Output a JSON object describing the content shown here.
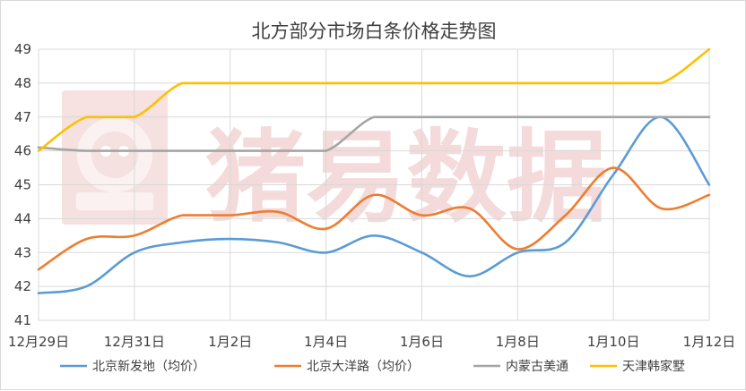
{
  "chart_data": {
    "type": "line",
    "title": "北方部分市场白条价格走势图",
    "xlabel": "",
    "ylabel": "",
    "x_tick_labels": [
      "12月29日",
      "12月31日",
      "1月2日",
      "1月4日",
      "1月6日",
      "1月8日",
      "1月10日",
      "1月12日"
    ],
    "x": [
      "12-29",
      "12-30",
      "12-31",
      "1-1",
      "1-2",
      "1-3",
      "1-4",
      "1-5",
      "1-6",
      "1-7",
      "1-8",
      "1-9",
      "1-10",
      "1-11",
      "1-12"
    ],
    "ylim": [
      41,
      49
    ],
    "y_ticks": [
      41,
      42,
      43,
      44,
      45,
      46,
      47,
      48,
      49
    ],
    "grid": true,
    "legend_position": "bottom",
    "series": [
      {
        "name": "北京新发地（均价）",
        "color": "#5b9bd5",
        "values": [
          41.8,
          42.0,
          43.0,
          43.3,
          43.4,
          43.3,
          43.0,
          43.5,
          43.0,
          42.3,
          43.0,
          43.3,
          45.3,
          47.0,
          45.0
        ]
      },
      {
        "name": "北京大洋路（均价）",
        "color": "#ed7d31",
        "values": [
          42.5,
          43.4,
          43.5,
          44.1,
          44.1,
          44.2,
          43.7,
          44.7,
          44.1,
          44.3,
          43.1,
          44.1,
          45.5,
          44.3,
          44.7
        ]
      },
      {
        "name": "内蒙古美通",
        "color": "#a5a5a5",
        "values": [
          46.1,
          46.0,
          46.0,
          46.0,
          46.0,
          46.0,
          46.0,
          47.0,
          47.0,
          47.0,
          47.0,
          47.0,
          47.0,
          47.0,
          47.0
        ]
      },
      {
        "name": "天津韩家墅",
        "color": "#ffc000",
        "values": [
          46.0,
          47.0,
          47.0,
          48.0,
          48.0,
          48.0,
          48.0,
          48.0,
          48.0,
          48.0,
          48.0,
          48.0,
          48.0,
          48.0,
          49.0
        ]
      }
    ]
  },
  "watermark": {
    "text": "猪易数据",
    "logo_color": "#f6dede"
  }
}
